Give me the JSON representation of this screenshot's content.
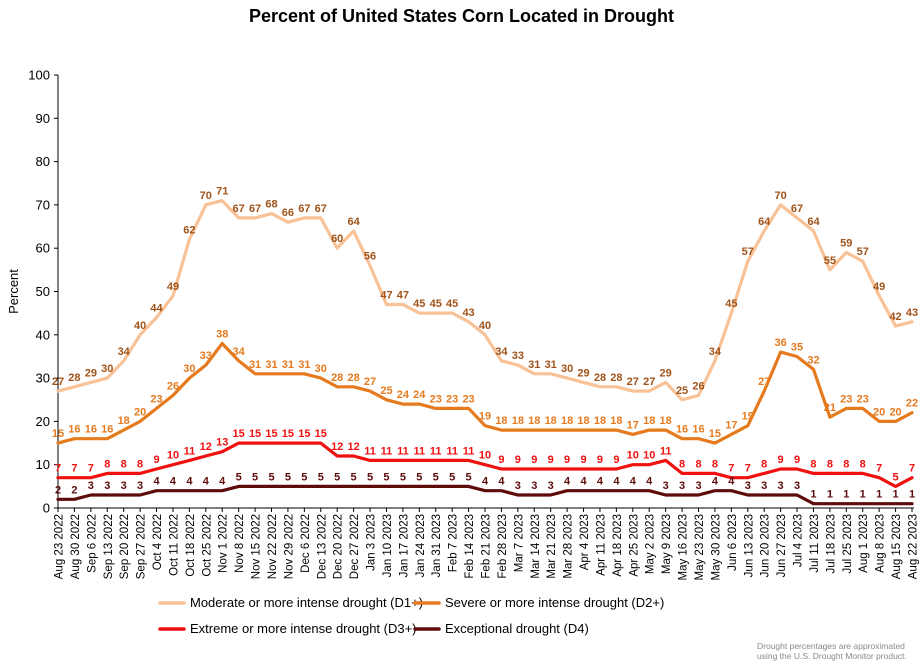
{
  "chart_data": {
    "type": "line",
    "title": "Percent of United States Corn Located in Drought",
    "ylabel": "Percent",
    "ylim": [
      0,
      100
    ],
    "yticks": [
      0,
      10,
      20,
      30,
      40,
      50,
      60,
      70,
      80,
      90,
      100
    ],
    "grid": false,
    "legend_position": "bottom",
    "categories": [
      "Aug 23 2022",
      "Aug 30 2022",
      "Sep 6 2022",
      "Sep 13 2022",
      "Sep 20 2022",
      "Sep 27 2022",
      "Oct 4 2022",
      "Oct 11 2022",
      "Oct 18 2022",
      "Oct 25 2022",
      "Nov 1 2022",
      "Nov 8 2022",
      "Nov 15 2022",
      "Nov 22 2022",
      "Nov 29 2022",
      "Dec 6 2022",
      "Dec 13 2022",
      "Dec 20 2022",
      "Dec 27 2022",
      "Jan 3 2023",
      "Jan 10 2023",
      "Jan 17 2023",
      "Jan 24 2023",
      "Jan 31 2023",
      "Feb 7 2023",
      "Feb 14 2023",
      "Feb 21 2023",
      "Feb 28 2023",
      "Mar 7 2023",
      "Mar 14 2023",
      "Mar 21 2023",
      "Mar 28 2023",
      "Apr 4 2023",
      "Apr 11 2023",
      "Apr 18 2023",
      "Apr 25 2023",
      "May 2 2023",
      "May 9 2023",
      "May 16 2023",
      "May 23 2023",
      "May 30 2023",
      "Jun 6 2023",
      "Jun 13 2023",
      "Jun 20 2023",
      "Jun 27 2023",
      "Jul 4 2023",
      "Jul 11 2023",
      "Jul 18 2023",
      "Jul 25 2023",
      "Aug 1 2023",
      "Aug 8 2023",
      "Aug 15 2023",
      "Aug 22 2023"
    ],
    "tick_labels": [
      "Aug 23 2022",
      "Aug 30 2022",
      "Sep 6 2022",
      "Sep 13 2022",
      "Sep 20 2022",
      "Sep 27 2022",
      "Oct 4 2022",
      "Oct 11 2022",
      "Oct 18 2022",
      "Oct 25 2022",
      "Nov 1 2022",
      "Nov 8 2022",
      "Nov 15 2022",
      "Nov 22 2022",
      "Nov 29 2022",
      "Dec 6 2022",
      "Dec 13 2022",
      "Dec 20 2022",
      "Dec 27 2022",
      "Jan 3 2023",
      "Jan 10 2023",
      "Jan 17 2023",
      "Jan 24 2023",
      "Jan 31 2023",
      "Feb 7 2023",
      "Feb 14 2023",
      "Feb 21 2023",
      "Feb 28 2023",
      "Mar 7 2023",
      "Mar 14 2023",
      "Mar 21 2023",
      "Mar 28 2023",
      "Apr 4 2023",
      "Apr 11 2023",
      "Apr 18 2023",
      "Apr 25 2023",
      "May 2 2023",
      "May 9 2023",
      "May 16 2023",
      "May 23 2023",
      "May 30 2023",
      "Jun 6 2023",
      "Jun 13 2023",
      "Jun 20 2023",
      "Jun 27 2023",
      "Jul 4 2023",
      "Jul 11 2023",
      "Jul 18 2023",
      "Jul 25 2023",
      "Aug 1 2023",
      "Aug 8 2023",
      "Aug 15 2023",
      "Aug 22 2023"
    ],
    "series": [
      {
        "name": "Moderate or more intense drought (D1+)",
        "color": "#f9c196",
        "label_color": "#a0531a",
        "values": [
          27,
          28,
          29,
          30,
          34,
          40,
          44,
          49,
          62,
          70,
          71,
          67,
          67,
          68,
          66,
          67,
          67,
          60,
          64,
          56,
          47,
          47,
          45,
          45,
          45,
          43,
          40,
          34,
          33,
          31,
          31,
          30,
          29,
          28,
          28,
          27,
          27,
          29,
          25,
          26,
          34,
          45,
          57,
          64,
          70,
          67,
          64,
          55,
          59,
          57,
          49,
          42,
          43
        ]
      },
      {
        "name": "Severe or more intense drought (D2+)",
        "color": "#e57a1f",
        "label_color": "#e57a1f",
        "values": [
          15,
          16,
          16,
          16,
          18,
          20,
          23,
          26,
          30,
          33,
          38,
          34,
          31,
          31,
          31,
          31,
          30,
          28,
          28,
          27,
          25,
          24,
          24,
          23,
          23,
          23,
          19,
          18,
          18,
          18,
          18,
          18,
          18,
          18,
          18,
          17,
          18,
          18,
          16,
          16,
          15,
          17,
          19,
          27,
          36,
          35,
          32,
          21,
          23,
          23,
          20,
          20,
          22
        ]
      },
      {
        "name": "Extreme or more intense drought (D3+)",
        "color": "#f01010",
        "label_color": "#f01010",
        "values": [
          7,
          7,
          7,
          8,
          8,
          8,
          9,
          10,
          11,
          12,
          13,
          15,
          15,
          15,
          15,
          15,
          15,
          12,
          12,
          11,
          11,
          11,
          11,
          11,
          11,
          11,
          10,
          9,
          9,
          9,
          9,
          9,
          9,
          9,
          9,
          10,
          10,
          11,
          8,
          8,
          8,
          7,
          7,
          8,
          9,
          9,
          8,
          8,
          8,
          8,
          7,
          5,
          7
        ]
      },
      {
        "name": "Exceptional drought (D4)",
        "color": "#5e0b0b",
        "label_color": "#5e0b0b",
        "values": [
          2,
          2,
          3,
          3,
          3,
          3,
          4,
          4,
          4,
          4,
          4,
          5,
          5,
          5,
          5,
          5,
          5,
          5,
          5,
          5,
          5,
          5,
          5,
          5,
          5,
          5,
          4,
          4,
          3,
          3,
          3,
          4,
          4,
          4,
          4,
          4,
          4,
          3,
          3,
          3,
          4,
          4,
          3,
          3,
          3,
          3,
          1,
          1,
          1,
          1,
          1,
          1,
          1
        ]
      }
    ],
    "note": "Drought percentages are approximated using the U.S. Drought Monitor product."
  }
}
